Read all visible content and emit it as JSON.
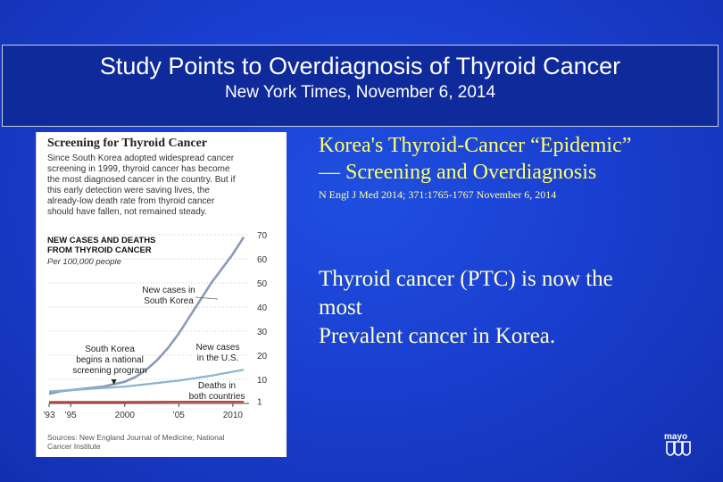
{
  "slide": {
    "title": "Study Points to Overdiagnosis of Thyroid Cancer",
    "subtitle": "New York Times, November 6, 2014",
    "citation_title_line1": "Korea's Thyroid-Cancer “Epidemic”",
    "citation_title_line2": "— Screening and Overdiagnosis",
    "citation_ref": "N Engl J Med 2014; 371:1765-1767 November 6, 2014",
    "statement_line1": "Thyroid cancer (PTC) is now the",
    "statement_line2": "most",
    "statement_line3": "Prevalent cancer in Korea.",
    "logo_text": "mayo",
    "logo_icon": "mayo-shield-icon"
  },
  "figure": {
    "heading": "Screening for Thyroid Cancer",
    "desc_lines": [
      "Since South Korea adopted widespread cancer",
      "screening in 1999, thyroid cancer has become",
      "the most diagnosed cancer in the country. But if",
      "this early detection were saving lives, the",
      "already-low death rate from thyroid cancer",
      "should have fallen, not remained steady."
    ],
    "source_line1": "Sources: New England Journal of Medicine; National",
    "source_line2": "Cancer Institute"
  },
  "chart_data": {
    "type": "line",
    "title_line1": "NEW CASES AND DEATHS",
    "title_line2": "FROM THYROID CANCER",
    "unit": "Per 100,000 people",
    "ylim": [
      0,
      70
    ],
    "yticks": [
      1,
      10,
      20,
      30,
      40,
      50,
      60,
      70
    ],
    "ytick_labels": [
      "1",
      "10",
      "20",
      "30",
      "40",
      "50",
      "60",
      "70"
    ],
    "xlim": [
      1993,
      2011
    ],
    "xticks": [
      1993,
      1995,
      2000,
      2005,
      2010
    ],
    "xtick_labels": [
      "'93",
      "'95",
      "2000",
      "'05",
      "2010"
    ],
    "annotations": {
      "korea_line1": "New cases in",
      "korea_line2": "South Korea",
      "screen_line1": "South Korea",
      "screen_line2": "begins a national",
      "screen_line3": "screening program",
      "us_line1": "New cases",
      "us_line2": "in the U.S.",
      "deaths_line1": "Deaths in",
      "deaths_line2": "both countries"
    },
    "screening_year": 1999,
    "series": [
      {
        "label": "Korea",
        "color": "#8a9bb5",
        "x": [
          1993,
          1994,
          1995,
          1996,
          1997,
          1998,
          1999,
          2000,
          2001,
          2002,
          2003,
          2004,
          2005,
          2006,
          2007,
          2008,
          2009,
          2010,
          2011
        ],
        "y": [
          4,
          5,
          5.5,
          6,
          6.5,
          7,
          8,
          9,
          11,
          14,
          18,
          23,
          29,
          36,
          43,
          50,
          56,
          62,
          69
        ]
      },
      {
        "label": "U.S.",
        "color": "#8cb4cf",
        "x": [
          1993,
          1995,
          2000,
          2005,
          2008,
          2011
        ],
        "y": [
          5,
          5.5,
          7,
          9.5,
          11.5,
          14
        ]
      },
      {
        "label": "Deaths",
        "color": "#c0392b",
        "x": [
          1993,
          2000,
          2005,
          2011
        ],
        "y": [
          0.6,
          0.6,
          0.7,
          0.7
        ]
      }
    ]
  }
}
